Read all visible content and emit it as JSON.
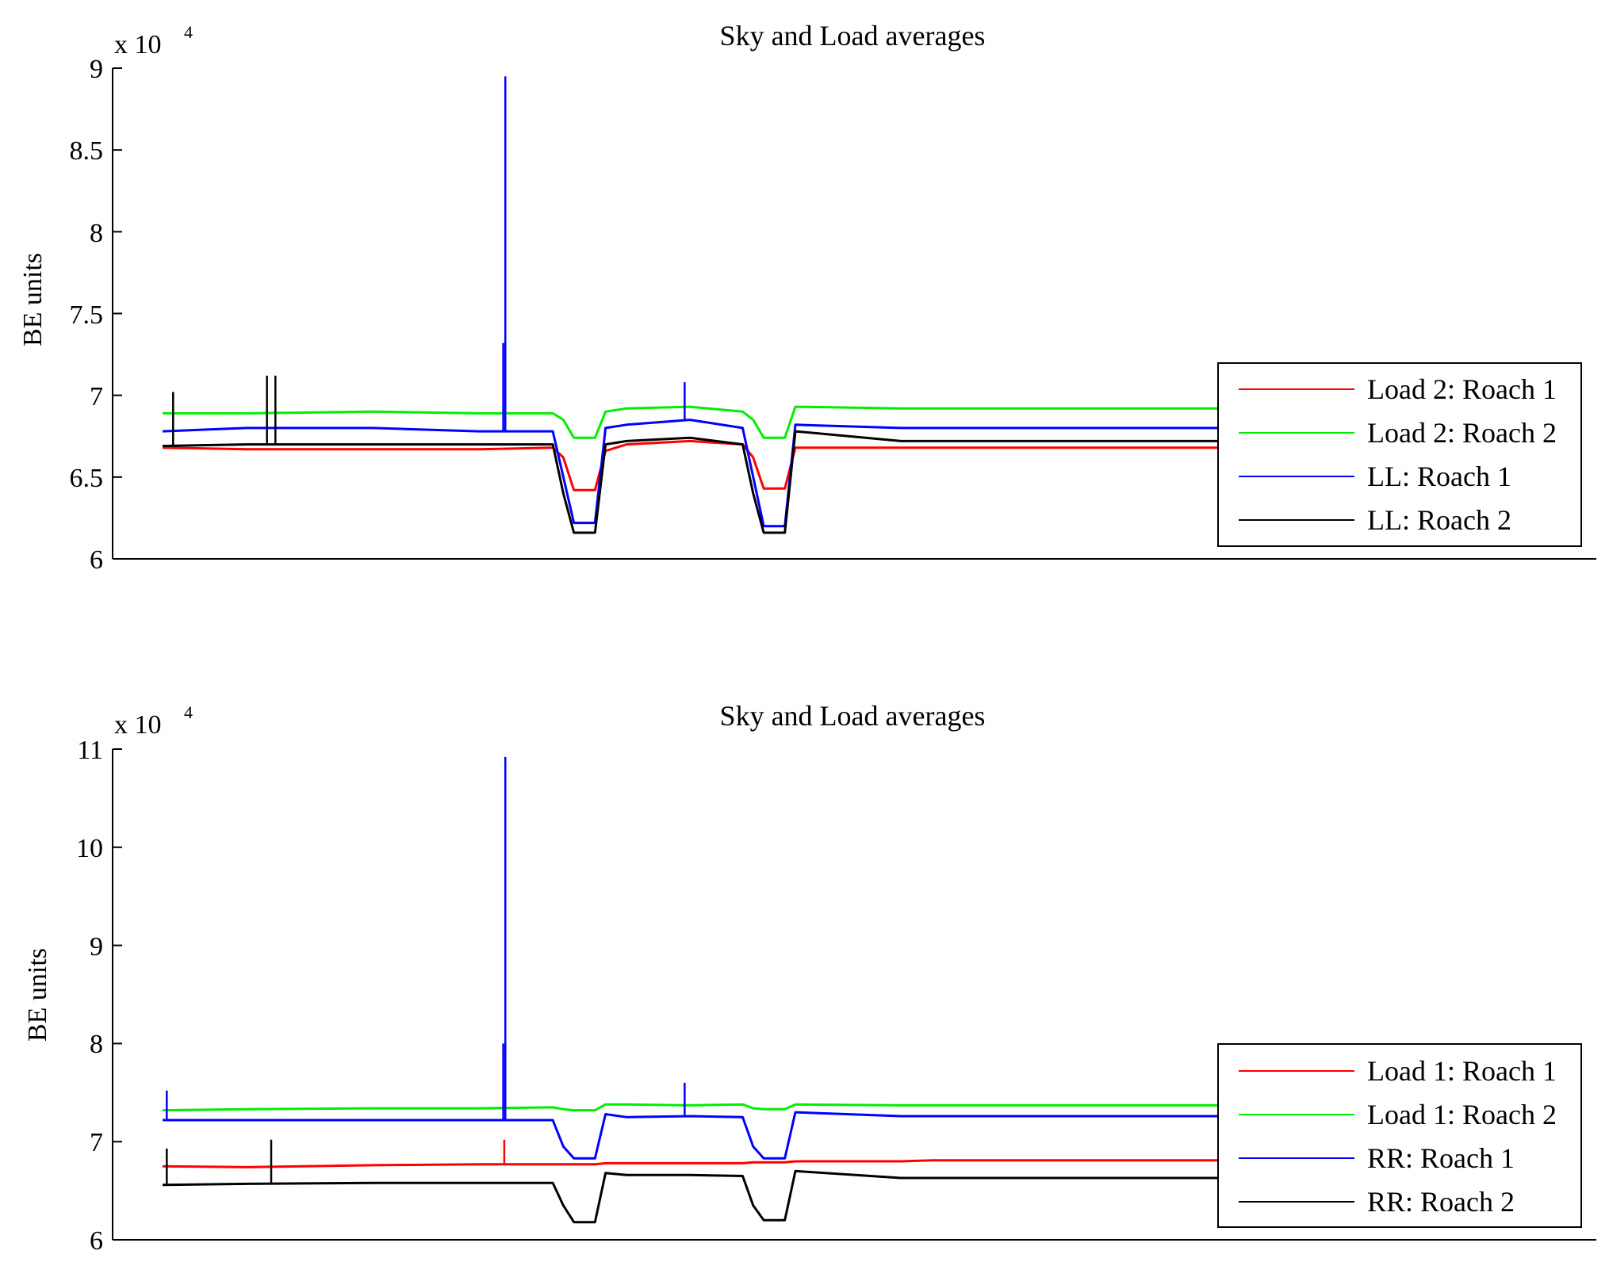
{
  "chart_data": [
    {
      "type": "line",
      "title": "Sky and Load averages",
      "xlabel": "",
      "ylabel": "BE units",
      "exponent_base": "x 10",
      "exponent_power": "4",
      "ylim": [
        6,
        9
      ],
      "yticks": [
        6,
        6.5,
        7,
        7.5,
        8,
        8.5,
        9
      ],
      "ytick_labels": [
        "6",
        "6.5",
        "7",
        "7.5",
        "8",
        "8.5",
        "9"
      ],
      "xlim": [
        0,
        100
      ],
      "x": [
        0,
        8,
        20,
        30,
        37,
        38,
        39,
        41,
        42,
        44,
        50,
        55,
        56,
        57,
        59,
        60,
        70,
        73,
        100
      ],
      "legend_position": "bottom-right",
      "series": [
        {
          "name": "Load 2: Roach 1",
          "color": "#ff0000",
          "values": [
            6.68,
            6.67,
            6.67,
            6.67,
            6.68,
            6.62,
            6.42,
            6.42,
            6.66,
            6.7,
            6.72,
            6.7,
            6.62,
            6.43,
            6.43,
            6.68,
            6.68,
            6.68,
            6.68
          ]
        },
        {
          "name": "Load 2: Roach 2",
          "color": "#00ee00",
          "values": [
            6.89,
            6.89,
            6.9,
            6.89,
            6.89,
            6.85,
            6.74,
            6.74,
            6.9,
            6.92,
            6.93,
            6.9,
            6.85,
            6.74,
            6.74,
            6.93,
            6.92,
            6.92,
            6.92
          ]
        },
        {
          "name": "LL: Roach 1",
          "color": "#0000ff",
          "values": [
            6.78,
            6.8,
            6.8,
            6.78,
            6.78,
            6.5,
            6.22,
            6.22,
            6.8,
            6.82,
            6.85,
            6.8,
            6.5,
            6.2,
            6.2,
            6.82,
            6.8,
            6.8,
            6.8
          ]
        },
        {
          "name": "LL: Roach 2",
          "color": "#000000",
          "values": [
            6.69,
            6.7,
            6.7,
            6.7,
            6.7,
            6.4,
            6.16,
            6.16,
            6.7,
            6.72,
            6.74,
            6.7,
            6.4,
            6.16,
            6.16,
            6.78,
            6.72,
            6.72,
            6.72
          ]
        }
      ],
      "spikes": [
        {
          "series": "LL: Roach 1",
          "x": 32.5,
          "y": 8.95
        },
        {
          "series": "LL: Roach 1",
          "x": 32.3,
          "y": 7.32
        },
        {
          "series": "LL: Roach 1",
          "x": 49.5,
          "y": 7.08
        },
        {
          "series": "LL: Roach 2",
          "x": 1.0,
          "y": 7.02
        },
        {
          "series": "LL: Roach 2",
          "x": 9.9,
          "y": 7.12
        },
        {
          "series": "LL: Roach 2",
          "x": 10.7,
          "y": 7.12
        }
      ]
    },
    {
      "type": "line",
      "title": "Sky and Load averages",
      "xlabel": "",
      "ylabel": "BE units",
      "exponent_base": "x 10",
      "exponent_power": "4",
      "ylim": [
        6,
        11
      ],
      "yticks": [
        6,
        7,
        8,
        9,
        10,
        11
      ],
      "ytick_labels": [
        "6",
        "7",
        "8",
        "9",
        "10",
        "11"
      ],
      "xlim": [
        0,
        100
      ],
      "x": [
        0,
        8,
        20,
        30,
        37,
        38,
        39,
        41,
        42,
        44,
        50,
        55,
        56,
        57,
        59,
        60,
        70,
        73,
        100
      ],
      "legend_position": "bottom-right",
      "series": [
        {
          "name": "Load 1: Roach 1",
          "color": "#ff0000",
          "values": [
            6.75,
            6.74,
            6.76,
            6.77,
            6.77,
            6.77,
            6.77,
            6.77,
            6.78,
            6.78,
            6.78,
            6.78,
            6.79,
            6.79,
            6.79,
            6.8,
            6.8,
            6.81,
            6.81
          ]
        },
        {
          "name": "Load 1: Roach 2",
          "color": "#00ee00",
          "values": [
            7.32,
            7.33,
            7.34,
            7.34,
            7.35,
            7.33,
            7.32,
            7.32,
            7.38,
            7.38,
            7.37,
            7.38,
            7.34,
            7.33,
            7.33,
            7.38,
            7.37,
            7.37,
            7.37
          ]
        },
        {
          "name": "RR: Roach 1",
          "color": "#0000ff",
          "values": [
            7.22,
            7.22,
            7.22,
            7.22,
            7.22,
            6.95,
            6.83,
            6.83,
            7.28,
            7.25,
            7.26,
            7.25,
            6.95,
            6.83,
            6.83,
            7.3,
            7.26,
            7.26,
            7.26
          ]
        },
        {
          "name": "RR: Roach 2",
          "color": "#000000",
          "values": [
            6.56,
            6.57,
            6.58,
            6.58,
            6.58,
            6.35,
            6.18,
            6.18,
            6.68,
            6.66,
            6.66,
            6.65,
            6.35,
            6.2,
            6.2,
            6.7,
            6.63,
            6.63,
            6.63
          ]
        }
      ],
      "spikes": [
        {
          "series": "RR: Roach 1",
          "x": 32.5,
          "y": 10.92
        },
        {
          "series": "RR: Roach 1",
          "x": 32.3,
          "y": 8.0
        },
        {
          "series": "RR: Roach 1",
          "x": 49.5,
          "y": 7.6
        },
        {
          "series": "RR: Roach 1",
          "x": 0.4,
          "y": 7.52
        },
        {
          "series": "Load 1: Roach 1",
          "x": 32.4,
          "y": 7.02
        },
        {
          "series": "RR: Roach 2",
          "x": 0.4,
          "y": 6.93
        },
        {
          "series": "RR: Roach 2",
          "x": 10.3,
          "y": 7.02
        }
      ]
    }
  ]
}
